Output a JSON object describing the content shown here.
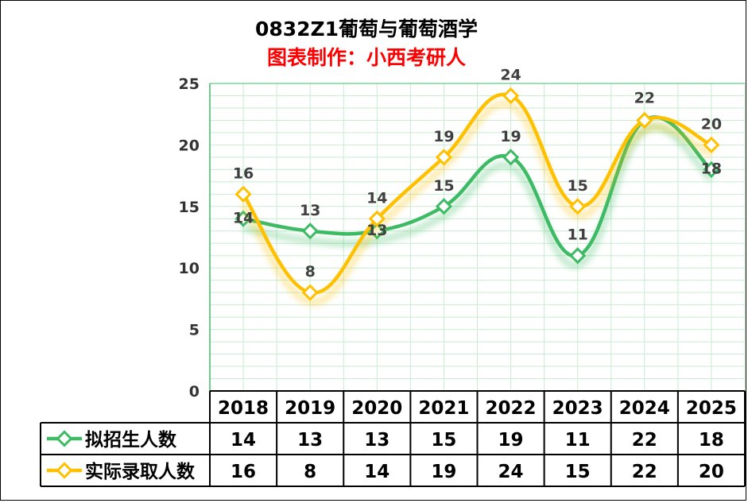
{
  "chart_data": {
    "type": "line",
    "title": "0832Z1葡萄与葡萄酒学",
    "subtitle": "图表制作：小西考研人",
    "categories": [
      "2018",
      "2019",
      "2020",
      "2021",
      "2022",
      "2023",
      "2024",
      "2025"
    ],
    "ylim": [
      0,
      25
    ],
    "yticks": [
      "0",
      "5",
      "10",
      "15",
      "20",
      "25"
    ],
    "grid": true,
    "legend_position": "table-left",
    "series": [
      {
        "name": "拟招生人数",
        "color": "#3dbb64",
        "values": [
          14,
          13,
          13,
          15,
          19,
          11,
          22,
          18
        ]
      },
      {
        "name": "实际录取人数",
        "color": "#ffc000",
        "values": [
          16,
          8,
          14,
          19,
          24,
          15,
          22,
          20
        ]
      }
    ]
  },
  "colors": {
    "title": "#000000",
    "subtitle": "#ff0000",
    "grid": "#c8ecd2",
    "axis": "#3dbb64"
  }
}
